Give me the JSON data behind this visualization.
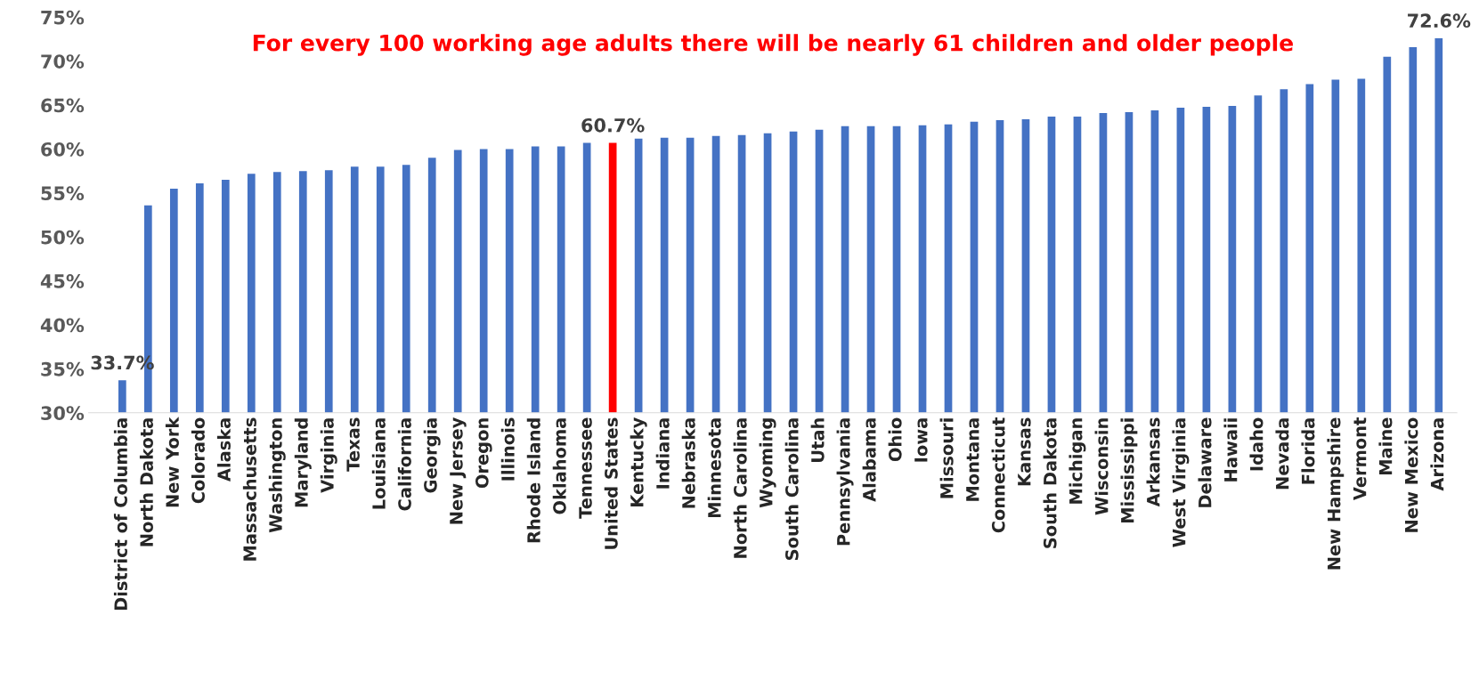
{
  "chart_data": {
    "type": "bar",
    "title": "For every 100 working age adults there will be nearly 61 children and older people",
    "categories": [
      "District of Columbia",
      "North Dakota",
      "New York",
      "Colorado",
      "Alaska",
      "Massachusetts",
      "Washington",
      "Maryland",
      "Virginia",
      "Texas",
      "Louisiana",
      "California",
      "Georgia",
      "New Jersey",
      "Oregon",
      "Illinois",
      "Rhode Island",
      "Oklahoma",
      "Tennessee",
      "United States",
      "Kentucky",
      "Indiana",
      "Nebraska",
      "Minnesota",
      "North Carolina",
      "Wyoming",
      "South Carolina",
      "Utah",
      "Pennsylvania",
      "Alabama",
      "Ohio",
      "Iowa",
      "Missouri",
      "Montana",
      "Connecticut",
      "Kansas",
      "South Dakota",
      "Michigan",
      "Wisconsin",
      "Mississippi",
      "Arkansas",
      "West Virginia",
      "Delaware",
      "Hawaii",
      "Idaho",
      "Nevada",
      "Florida",
      "New Hampshire",
      "Vermont",
      "Maine",
      "New Mexico",
      "Arizona"
    ],
    "values": [
      33.7,
      53.6,
      55.5,
      56.1,
      56.5,
      57.2,
      57.4,
      57.5,
      57.6,
      58.0,
      58.0,
      58.2,
      59.0,
      59.9,
      60.0,
      60.0,
      60.3,
      60.3,
      60.7,
      60.7,
      61.2,
      61.3,
      61.3,
      61.5,
      61.6,
      61.8,
      62.0,
      62.2,
      62.6,
      62.6,
      62.6,
      62.7,
      62.8,
      63.1,
      63.3,
      63.4,
      63.7,
      63.7,
      64.1,
      64.2,
      64.4,
      64.7,
      64.8,
      64.9,
      66.1,
      66.8,
      67.4,
      67.9,
      68.0,
      70.5,
      71.6,
      72.6
    ],
    "colors": [
      "#4472c4",
      "#4472c4",
      "#4472c4",
      "#4472c4",
      "#4472c4",
      "#4472c4",
      "#4472c4",
      "#4472c4",
      "#4472c4",
      "#4472c4",
      "#4472c4",
      "#4472c4",
      "#4472c4",
      "#4472c4",
      "#4472c4",
      "#4472c4",
      "#4472c4",
      "#4472c4",
      "#4472c4",
      "#ff0000",
      "#4472c4",
      "#4472c4",
      "#4472c4",
      "#4472c4",
      "#4472c4",
      "#4472c4",
      "#4472c4",
      "#4472c4",
      "#4472c4",
      "#4472c4",
      "#4472c4",
      "#4472c4",
      "#4472c4",
      "#4472c4",
      "#4472c4",
      "#4472c4",
      "#4472c4",
      "#4472c4",
      "#4472c4",
      "#4472c4",
      "#4472c4",
      "#4472c4",
      "#4472c4",
      "#4472c4",
      "#4472c4",
      "#4472c4",
      "#4472c4",
      "#4472c4",
      "#4472c4",
      "#4472c4",
      "#4472c4",
      "#4472c4"
    ],
    "value_labels": [
      "33.7%",
      null,
      null,
      null,
      null,
      null,
      null,
      null,
      null,
      null,
      null,
      null,
      null,
      null,
      null,
      null,
      null,
      null,
      null,
      "60.7%",
      null,
      null,
      null,
      null,
      null,
      null,
      null,
      null,
      null,
      null,
      null,
      null,
      null,
      null,
      null,
      null,
      null,
      null,
      null,
      null,
      null,
      null,
      null,
      null,
      null,
      null,
      null,
      null,
      null,
      null,
      null,
      "72.6%"
    ],
    "ylim": [
      30,
      75
    ],
    "yticks": [
      {
        "value": 30,
        "label": "30%"
      },
      {
        "value": 35,
        "label": "35%"
      },
      {
        "value": 40,
        "label": "40%"
      },
      {
        "value": 45,
        "label": "45%"
      },
      {
        "value": 50,
        "label": "50%"
      },
      {
        "value": 55,
        "label": "55%"
      },
      {
        "value": 60,
        "label": "60%"
      },
      {
        "value": 65,
        "label": "65%"
      },
      {
        "value": 70,
        "label": "70%"
      },
      {
        "value": 75,
        "label": "75%"
      }
    ],
    "grid": false,
    "legend": false
  }
}
